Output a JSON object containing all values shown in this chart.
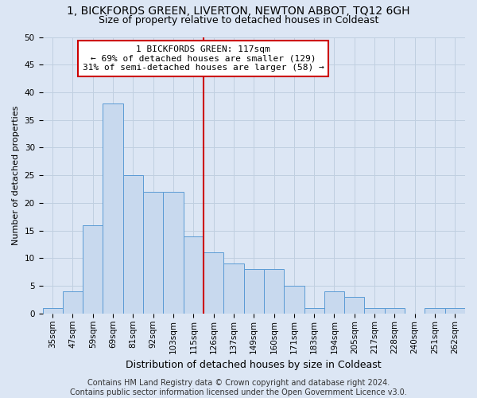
{
  "title1": "1, BICKFORDS GREEN, LIVERTON, NEWTON ABBOT, TQ12 6GH",
  "title2": "Size of property relative to detached houses in Coldeast",
  "xlabel": "Distribution of detached houses by size in Coldeast",
  "ylabel": "Number of detached properties",
  "categories": [
    "35sqm",
    "47sqm",
    "59sqm",
    "69sqm",
    "81sqm",
    "92sqm",
    "103sqm",
    "115sqm",
    "126sqm",
    "137sqm",
    "149sqm",
    "160sqm",
    "171sqm",
    "183sqm",
    "194sqm",
    "205sqm",
    "217sqm",
    "228sqm",
    "240sqm",
    "251sqm",
    "262sqm"
  ],
  "values": [
    1,
    4,
    16,
    38,
    25,
    22,
    22,
    14,
    11,
    9,
    8,
    8,
    5,
    1,
    4,
    3,
    1,
    1,
    0,
    1,
    1
  ],
  "bar_color": "#c8d9ee",
  "bar_edge_color": "#5b9bd5",
  "annotation_text_line1": "1 BICKFORDS GREEN: 117sqm",
  "annotation_text_line2": "← 69% of detached houses are smaller (129)",
  "annotation_text_line3": "31% of semi-detached houses are larger (58) →",
  "annotation_box_color": "#ffffff",
  "annotation_box_edge_color": "#cc0000",
  "vline_color": "#cc0000",
  "grid_color": "#c0cfe0",
  "bg_color": "#dce6f4",
  "fig_bg_color": "#dce6f4",
  "ylim": [
    0,
    50
  ],
  "yticks": [
    0,
    5,
    10,
    15,
    20,
    25,
    30,
    35,
    40,
    45,
    50
  ],
  "vline_index": 7.5,
  "title1_fontsize": 10,
  "title2_fontsize": 9,
  "xlabel_fontsize": 9,
  "ylabel_fontsize": 8,
  "tick_fontsize": 7.5,
  "annot_fontsize": 8,
  "footer_fontsize": 7,
  "footer1": "Contains HM Land Registry data © Crown copyright and database right 2024.",
  "footer2": "Contains public sector information licensed under the Open Government Licence v3.0."
}
